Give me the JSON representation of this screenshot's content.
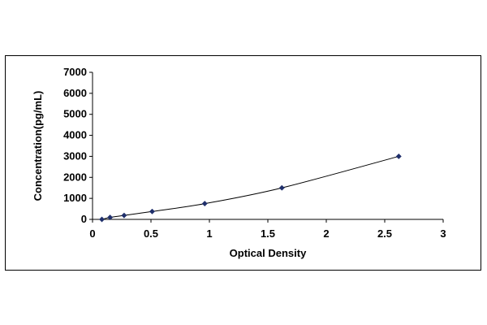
{
  "chart_data": {
    "type": "scatter",
    "title": "",
    "xlabel": "Optical Density",
    "ylabel": "Concentration(pg/mL)",
    "xlim": [
      0,
      3
    ],
    "ylim": [
      0,
      7000
    ],
    "xticks": [
      0,
      0.5,
      1,
      1.5,
      2,
      2.5,
      3
    ],
    "yticks": [
      0,
      1000,
      2000,
      3000,
      4000,
      5000,
      6000,
      7000
    ],
    "xtick_labels": [
      "0",
      "0.5",
      "1",
      "1.5",
      "2",
      "2.5",
      "3"
    ],
    "ytick_labels": [
      "0",
      "1000",
      "2000",
      "3000",
      "4000",
      "5000",
      "6000",
      "7000"
    ],
    "grid": false,
    "legend": "none",
    "trendline": "smooth curve through points",
    "series": [
      {
        "color": "#1f2f6b",
        "marker": "diamond",
        "points": [
          {
            "x": 0.08,
            "y": 0
          },
          {
            "x": 0.15,
            "y": 94
          },
          {
            "x": 0.27,
            "y": 188
          },
          {
            "x": 0.51,
            "y": 375
          },
          {
            "x": 0.96,
            "y": 750
          },
          {
            "x": 1.62,
            "y": 1500
          },
          {
            "x": 2.62,
            "y": 3000
          }
        ]
      }
    ]
  }
}
